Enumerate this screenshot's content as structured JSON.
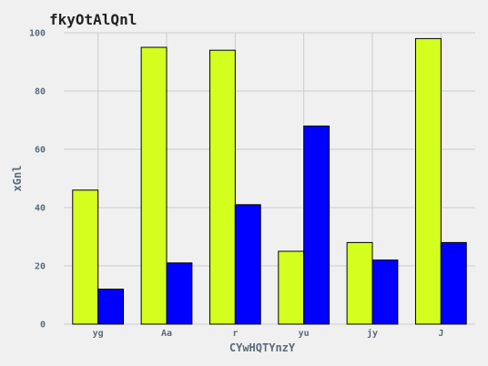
{
  "chart_data": {
    "type": "bar",
    "title": "fkyOtAlQnl",
    "xlabel": "CYwHQTYnzY",
    "ylabel": "xGnl",
    "categories": [
      "yg",
      "Aa",
      "r",
      "yu",
      "jy",
      "J"
    ],
    "series": [
      {
        "color": "#d4ff1e",
        "values": [
          46,
          95,
          94,
          25,
          28,
          98
        ]
      },
      {
        "color": "#0000ff",
        "values": [
          12,
          21,
          41,
          68,
          22,
          28
        ]
      }
    ],
    "ylim": [
      0,
      100
    ],
    "yticks": [
      0,
      20,
      40,
      60,
      80,
      100
    ],
    "grid": true,
    "background": "#f0f0f0"
  }
}
